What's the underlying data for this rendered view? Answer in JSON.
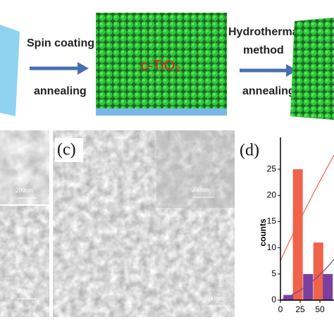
{
  "schematic": {
    "step1": {
      "top": "Spin coating",
      "bottom": "annealing"
    },
    "layer": "c-TiO₂",
    "step2": {
      "top": [
        "Hydrothermal",
        "method"
      ],
      "bottom": "annealing"
    }
  },
  "panels": {
    "c": {
      "label": "(c)",
      "scale_main": "500nm",
      "scale_inset": "200nm"
    },
    "left": {
      "scale_top": "200nm",
      "scale_bottom": "500nm"
    }
  },
  "chart_data": {
    "type": "bar",
    "label": "(d)",
    "ylabel": "counts",
    "xlim": [
      0,
      65
    ],
    "ylim": [
      0,
      30
    ],
    "xticks": [
      0,
      25,
      50
    ],
    "yticks": [
      0,
      5,
      10,
      15,
      20,
      25
    ],
    "series": [
      {
        "color": "#f0624a",
        "x": [
          22,
          48
        ],
        "values": [
          25,
          11
        ]
      },
      {
        "color": "#7b3fa0",
        "x": [
          10,
          35,
          60
        ],
        "values": [
          1,
          5,
          5
        ]
      }
    ]
  }
}
